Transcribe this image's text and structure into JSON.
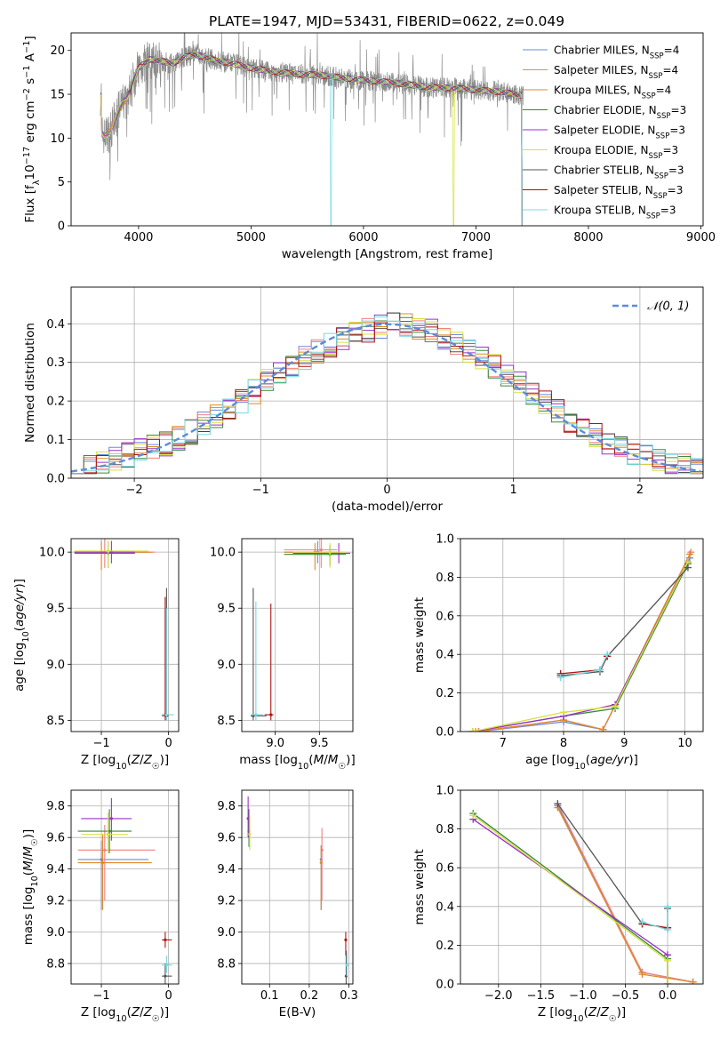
{
  "colors": {
    "chabrier_miles": "#6b8bd8",
    "salpeter_miles": "#f08080",
    "kroupa_miles": "#e08a2a",
    "chabrier_elodie": "#3a8a3a",
    "salpeter_elodie": "#9a30c8",
    "kroupa_elodie": "#d8e040",
    "chabrier_stelib": "#555555",
    "salpeter_stelib": "#b01010",
    "kroupa_stelib": "#78d8e0",
    "gaussian": "#5b8cdb",
    "data_spectrum": "#8c8c8c",
    "grid": "#b0b0b0"
  },
  "chart_data": [
    {
      "id": "spectrum",
      "type": "line",
      "title": "PLATE=1947, MJD=53431, FIBERID=0622, z=0.049",
      "xlabel": "wavelength [Angstrom, rest frame]",
      "ylabel": "Flux [fλ10⁻¹⁷ erg cm⁻² s⁻¹ A⁻¹]",
      "xlim": [
        3400,
        9020
      ],
      "ylim": [
        0,
        22
      ],
      "xticks": [
        4000,
        5000,
        6000,
        7000,
        8000,
        9000
      ],
      "yticks": [
        0,
        5,
        10,
        15,
        20
      ],
      "grid": false,
      "legend_position": "top-right",
      "legend": [
        {
          "label": "Chabrier MILES, N",
          "sub": "SSP",
          "tail": "=4"
        },
        {
          "label": "Salpeter MILES, N",
          "sub": "SSP",
          "tail": "=4"
        },
        {
          "label": "Kroupa MILES, N",
          "sub": "SSP",
          "tail": "=4"
        },
        {
          "label": "Chabrier ELODIE, N",
          "sub": "SSP",
          "tail": "=3"
        },
        {
          "label": "Salpeter ELODIE, N",
          "sub": "SSP",
          "tail": "=3"
        },
        {
          "label": "Kroupa ELODIE, N",
          "sub": "SSP",
          "tail": "=3"
        },
        {
          "label": "Chabrier STELIB, N",
          "sub": "SSP",
          "tail": "=3"
        },
        {
          "label": "Salpeter STELIB, N",
          "sub": "SSP",
          "tail": "=3"
        },
        {
          "label": "Kroupa STELIB, N",
          "sub": "SSP",
          "tail": "=3"
        }
      ],
      "data_envelope": {
        "x": [
          3670,
          3700,
          3750,
          3800,
          3850,
          3900,
          3950,
          4000,
          4100,
          4200,
          4300,
          4400,
          4500,
          4600,
          4700,
          4800,
          4900,
          5000,
          5200,
          5400,
          5600,
          5800,
          6000,
          6200,
          6400,
          6600,
          6800,
          7000,
          7200,
          7300,
          7400,
          7420
        ],
        "y": [
          10.5,
          10.2,
          10.8,
          12.5,
          13.8,
          14.5,
          16.5,
          18.0,
          19.0,
          18.8,
          18.5,
          19.2,
          19.5,
          19.2,
          18.8,
          18.6,
          18.3,
          18.0,
          17.6,
          17.3,
          17.2,
          16.9,
          16.6,
          16.4,
          16.1,
          15.8,
          15.7,
          15.5,
          15.3,
          15.1,
          14.9,
          14.8
        ]
      },
      "model_cutoffs": {
        "kroupa_stelib_drop": 5710,
        "kroupa_elodie_drop": 6800,
        "miles_end": 7410,
        "stelib_start": 3920
      },
      "plotted_range": [
        3660,
        7420
      ]
    },
    {
      "id": "residuals",
      "type": "line",
      "xlabel": "(data-model)/error",
      "ylabel": "Normed distribution",
      "xlim": [
        -2.5,
        2.5
      ],
      "ylim": [
        0,
        0.495
      ],
      "xticks": [
        -2,
        -1,
        0,
        1,
        2
      ],
      "yticks": [
        0.0,
        0.1,
        0.2,
        0.3,
        0.4
      ],
      "grid": true,
      "legend_position": "top-right",
      "legend": [
        {
          "label": "𝒩(0, 1)"
        }
      ],
      "bin_width": 0.1,
      "base_histogram": [
        0.025,
        0.03,
        0.04,
        0.05,
        0.06,
        0.07,
        0.08,
        0.09,
        0.105,
        0.12,
        0.14,
        0.16,
        0.18,
        0.2,
        0.225,
        0.25,
        0.27,
        0.295,
        0.31,
        0.33,
        0.345,
        0.36,
        0.375,
        0.385,
        0.395,
        0.405,
        0.4,
        0.39,
        0.38,
        0.365,
        0.35,
        0.33,
        0.31,
        0.29,
        0.27,
        0.245,
        0.22,
        0.195,
        0.175,
        0.15,
        0.13,
        0.11,
        0.095,
        0.08,
        0.065,
        0.055,
        0.045,
        0.035,
        0.03,
        0.025
      ]
    },
    {
      "id": "age_vs_Z",
      "type": "scatter",
      "xlabel": "Z [log₁₀(Z/Z☉)]",
      "ylabel": "age  [log₁₀(age/yr)]",
      "xlim": [
        -1.45,
        0.15
      ],
      "ylim": [
        8.4,
        10.12
      ],
      "xticks": [
        -1,
        0
      ],
      "yticks": [
        8.5,
        9.0,
        9.5,
        10.0
      ],
      "grid": true,
      "points": [
        {
          "m": "chabrier_miles",
          "x": -1.0,
          "y": 10.0,
          "xl": -1.4,
          "xh": -0.3,
          "yl": 9.85,
          "yh": 10.1
        },
        {
          "m": "salpeter_miles",
          "x": -0.95,
          "y": 10.0,
          "xl": -1.4,
          "xh": -0.2,
          "yl": 9.86,
          "yh": 10.12
        },
        {
          "m": "kroupa_miles",
          "x": -1.0,
          "y": 10.0,
          "xl": -1.4,
          "xh": -0.25,
          "yl": 9.84,
          "yh": 10.08
        },
        {
          "m": "chabrier_elodie",
          "x": -0.9,
          "y": 9.99,
          "xl": -1.4,
          "xh": -0.5,
          "yl": 9.86,
          "yh": 10.1
        },
        {
          "m": "salpeter_elodie",
          "x": -0.85,
          "y": 10.0,
          "xl": -1.4,
          "xh": -0.5,
          "yl": 9.9,
          "yh": 10.1
        },
        {
          "m": "kroupa_elodie",
          "x": -0.9,
          "y": 10.01,
          "xl": -1.4,
          "xh": -0.3,
          "yl": 9.86,
          "yh": 10.1
        },
        {
          "m": "chabrier_stelib",
          "x": -0.03,
          "y": 8.54,
          "xl": -0.1,
          "xh": 0.0,
          "yl": 8.5,
          "yh": 9.68
        },
        {
          "m": "salpeter_stelib",
          "x": -0.05,
          "y": 8.55,
          "xl": -0.1,
          "xh": 0.0,
          "yl": 8.5,
          "yh": 9.6
        },
        {
          "m": "kroupa_stelib",
          "x": -0.03,
          "y": 8.55,
          "xl": -0.1,
          "xh": 0.08,
          "yl": 8.5,
          "yh": 9.5
        }
      ]
    },
    {
      "id": "age_vs_mass",
      "type": "scatter",
      "xlabel": "mass [log₁₀(M/M☉)]",
      "ylabel": "",
      "xlim": [
        8.62,
        9.88
      ],
      "ylim": [
        8.4,
        10.12
      ],
      "xticks": [
        9.0,
        9.5
      ],
      "yticks": [
        8.5,
        9.0,
        9.5,
        10.0
      ],
      "grid": true,
      "points": [
        {
          "m": "chabrier_miles",
          "x": 9.48,
          "y": 10.0,
          "xl": 9.1,
          "xh": 9.7,
          "yl": 9.9,
          "yh": 10.1
        },
        {
          "m": "salpeter_miles",
          "x": 9.52,
          "y": 10.02,
          "xl": 9.1,
          "xh": 9.7,
          "yl": 9.86,
          "yh": 10.12
        },
        {
          "m": "kroupa_miles",
          "x": 9.45,
          "y": 10.0,
          "xl": 9.1,
          "xh": 9.7,
          "yl": 9.84,
          "yh": 10.08
        },
        {
          "m": "chabrier_elodie",
          "x": 9.62,
          "y": 9.98,
          "xl": 9.1,
          "xh": 9.8,
          "yl": 9.88,
          "yh": 10.06
        },
        {
          "m": "salpeter_elodie",
          "x": 9.72,
          "y": 9.99,
          "xl": 9.2,
          "xh": 9.85,
          "yl": 9.9,
          "yh": 10.08
        },
        {
          "m": "kroupa_elodie",
          "x": 9.62,
          "y": 10.0,
          "xl": 9.2,
          "xh": 9.8,
          "yl": 9.86,
          "yh": 10.08
        },
        {
          "m": "chabrier_stelib",
          "x": 8.75,
          "y": 8.54,
          "xl": 8.72,
          "xh": 8.9,
          "yl": 8.5,
          "yh": 9.68
        },
        {
          "m": "salpeter_stelib",
          "x": 8.95,
          "y": 8.55,
          "xl": 8.88,
          "xh": 8.98,
          "yl": 8.5,
          "yh": 9.54
        },
        {
          "m": "kroupa_stelib",
          "x": 8.78,
          "y": 8.55,
          "xl": 8.72,
          "xh": 8.86,
          "yl": 8.5,
          "yh": 9.56
        }
      ]
    },
    {
      "id": "mass_weight_vs_age",
      "type": "line",
      "xlabel": "age  [log₁₀(age/yr)]",
      "ylabel": "mass weight",
      "xlim": [
        6.3,
        10.3
      ],
      "ylim": [
        0,
        1.0
      ],
      "xticks": [
        7,
        8,
        9,
        10
      ],
      "yticks": [
        0.0,
        0.2,
        0.4,
        0.6,
        0.8,
        1.0
      ],
      "grid": true,
      "series": [
        {
          "m": "chabrier_miles",
          "x": [
            6.6,
            8.0,
            8.65,
            10.08
          ],
          "y": [
            0.0,
            0.05,
            0.01,
            0.9
          ]
        },
        {
          "m": "salpeter_miles",
          "x": [
            6.6,
            8.0,
            8.65,
            10.1
          ],
          "y": [
            0.0,
            0.06,
            0.01,
            0.93
          ]
        },
        {
          "m": "kroupa_miles",
          "x": [
            6.55,
            8.0,
            8.65,
            10.08
          ],
          "y": [
            0.0,
            0.06,
            0.01,
            0.92
          ]
        },
        {
          "m": "chabrier_elodie",
          "x": [
            6.5,
            8.0,
            8.85,
            10.05
          ],
          "y": [
            0.0,
            0.08,
            0.12,
            0.87
          ]
        },
        {
          "m": "salpeter_elodie",
          "x": [
            6.5,
            8.0,
            8.85,
            10.05
          ],
          "y": [
            0.0,
            0.08,
            0.14,
            0.88
          ]
        },
        {
          "m": "kroupa_elodie",
          "x": [
            6.5,
            8.0,
            8.85,
            10.05
          ],
          "y": [
            0.0,
            0.1,
            0.13,
            0.88
          ]
        },
        {
          "m": "chabrier_stelib",
          "x": [
            7.95,
            8.6,
            8.72,
            10.05
          ],
          "y": [
            0.29,
            0.31,
            0.39,
            0.85
          ]
        },
        {
          "m": "salpeter_stelib",
          "x": [
            7.95,
            8.6,
            8.72
          ],
          "y": [
            0.3,
            0.32,
            0.39
          ]
        },
        {
          "m": "kroupa_stelib",
          "x": [
            7.95,
            8.6,
            8.72
          ],
          "y": [
            0.28,
            0.32,
            0.4
          ]
        }
      ]
    },
    {
      "id": "mass_vs_Z",
      "type": "scatter",
      "xlabel": "Z [log₁₀(Z/Z☉)]",
      "ylabel": "mass [log₁₀(M/M☉)]",
      "xlim": [
        -1.45,
        0.15
      ],
      "ylim": [
        8.67,
        9.9
      ],
      "xticks": [
        -1,
        0
      ],
      "yticks": [
        8.8,
        9.0,
        9.2,
        9.4,
        9.6,
        9.8
      ],
      "grid": true,
      "points": [
        {
          "m": "chabrier_miles",
          "x": -1.0,
          "y": 9.46,
          "xl": -1.35,
          "xh": -0.3,
          "yl": 9.14,
          "yh": 9.58
        },
        {
          "m": "salpeter_miles",
          "x": -0.95,
          "y": 9.52,
          "xl": -1.35,
          "xh": -0.2,
          "yl": 9.2,
          "yh": 9.68
        },
        {
          "m": "kroupa_miles",
          "x": -0.98,
          "y": 9.44,
          "xl": -1.35,
          "xh": -0.25,
          "yl": 9.14,
          "yh": 9.62
        },
        {
          "m": "chabrier_elodie",
          "x": -0.88,
          "y": 9.64,
          "xl": -1.35,
          "xh": -0.55,
          "yl": 9.5,
          "yh": 9.78
        },
        {
          "m": "salpeter_elodie",
          "x": -0.85,
          "y": 9.72,
          "xl": -1.3,
          "xh": -0.55,
          "yl": 9.58,
          "yh": 9.85
        },
        {
          "m": "kroupa_elodie",
          "x": -0.9,
          "y": 9.62,
          "xl": -1.3,
          "xh": -0.6,
          "yl": 9.5,
          "yh": 9.76
        },
        {
          "m": "chabrier_stelib",
          "x": -0.05,
          "y": 8.72,
          "xl": -0.1,
          "xh": 0.05,
          "yl": 8.67,
          "yh": 8.8
        },
        {
          "m": "salpeter_stelib",
          "x": -0.05,
          "y": 8.95,
          "xl": -0.1,
          "xh": 0.05,
          "yl": 8.9,
          "yh": 9.0
        },
        {
          "m": "kroupa_stelib",
          "x": -0.03,
          "y": 8.79,
          "xl": -0.1,
          "xh": 0.05,
          "yl": 8.74,
          "yh": 8.85
        }
      ]
    },
    {
      "id": "mass_vs_ebv",
      "type": "scatter",
      "xlabel": "E(B-V)",
      "ylabel": "",
      "xlim": [
        0.03,
        0.31
      ],
      "ylim": [
        8.67,
        9.9
      ],
      "xticks": [
        0.1,
        0.2,
        0.3
      ],
      "yticks": [
        8.8,
        9.0,
        9.2,
        9.4,
        9.6,
        9.8
      ],
      "grid": true,
      "points": [
        {
          "m": "chabrier_miles",
          "x": 0.23,
          "y": 9.46,
          "yl": 9.14,
          "yh": 9.55
        },
        {
          "m": "salpeter_miles",
          "x": 0.232,
          "y": 9.52,
          "yl": 9.2,
          "yh": 9.66
        },
        {
          "m": "kroupa_miles",
          "x": 0.23,
          "y": 9.44,
          "yl": 9.14,
          "yh": 9.55
        },
        {
          "m": "chabrier_elodie",
          "x": 0.048,
          "y": 9.64,
          "yl": 9.54,
          "yh": 9.78
        },
        {
          "m": "salpeter_elodie",
          "x": 0.046,
          "y": 9.72,
          "yl": 9.6,
          "yh": 9.86
        },
        {
          "m": "kroupa_elodie",
          "x": 0.05,
          "y": 9.62,
          "yl": 9.52,
          "yh": 9.74
        },
        {
          "m": "chabrier_stelib",
          "x": 0.293,
          "y": 8.72,
          "yl": 8.67,
          "yh": 8.88
        },
        {
          "m": "salpeter_stelib",
          "x": 0.292,
          "y": 8.95,
          "yl": 8.85,
          "yh": 9.0
        },
        {
          "m": "kroupa_stelib",
          "x": 0.295,
          "y": 8.79,
          "yl": 8.72,
          "yh": 8.88
        }
      ]
    },
    {
      "id": "mass_weight_vs_Z",
      "type": "line",
      "xlabel": "Z [log₁₀(Z/Z☉)]",
      "ylabel": "mass weight",
      "xlim": [
        -2.45,
        0.42
      ],
      "ylim": [
        0,
        1.0
      ],
      "xticks": [
        -2.0,
        -1.5,
        -1.0,
        -0.5,
        0.0
      ],
      "yticks": [
        0.0,
        0.2,
        0.4,
        0.6,
        0.8,
        1.0
      ],
      "grid": true,
      "series": [
        {
          "m": "chabrier_miles",
          "x": [
            -1.3,
            -0.3,
            0.3
          ],
          "y": [
            0.92,
            0.06,
            0.01
          ]
        },
        {
          "m": "salpeter_miles",
          "x": [
            -1.3,
            -0.3,
            0.3
          ],
          "y": [
            0.93,
            0.06,
            0.01
          ]
        },
        {
          "m": "kroupa_miles",
          "x": [
            -1.3,
            -0.3,
            0.3
          ],
          "y": [
            0.91,
            0.05,
            0.01
          ]
        },
        {
          "m": "chabrier_elodie",
          "x": [
            -2.3,
            0.0,
            0.0
          ],
          "y": [
            0.88,
            0.13,
            0.0
          ]
        },
        {
          "m": "salpeter_elodie",
          "x": [
            -2.3,
            0.0,
            0.0
          ],
          "y": [
            0.85,
            0.15,
            0.0
          ]
        },
        {
          "m": "kroupa_elodie",
          "x": [
            -2.3,
            0.0,
            0.0
          ],
          "y": [
            0.87,
            0.12,
            0.0
          ]
        },
        {
          "m": "chabrier_stelib",
          "x": [
            -1.3,
            -0.3,
            0.0,
            0.0
          ],
          "y": [
            0.93,
            0.31,
            0.29,
            0.39
          ]
        },
        {
          "m": "salpeter_stelib",
          "x": [
            -0.3,
            0.0
          ],
          "y": [
            0.31,
            0.29
          ]
        },
        {
          "m": "kroupa_stelib",
          "x": [
            -0.3,
            0.0,
            0.0
          ],
          "y": [
            0.32,
            0.28,
            0.4
          ]
        }
      ]
    }
  ]
}
